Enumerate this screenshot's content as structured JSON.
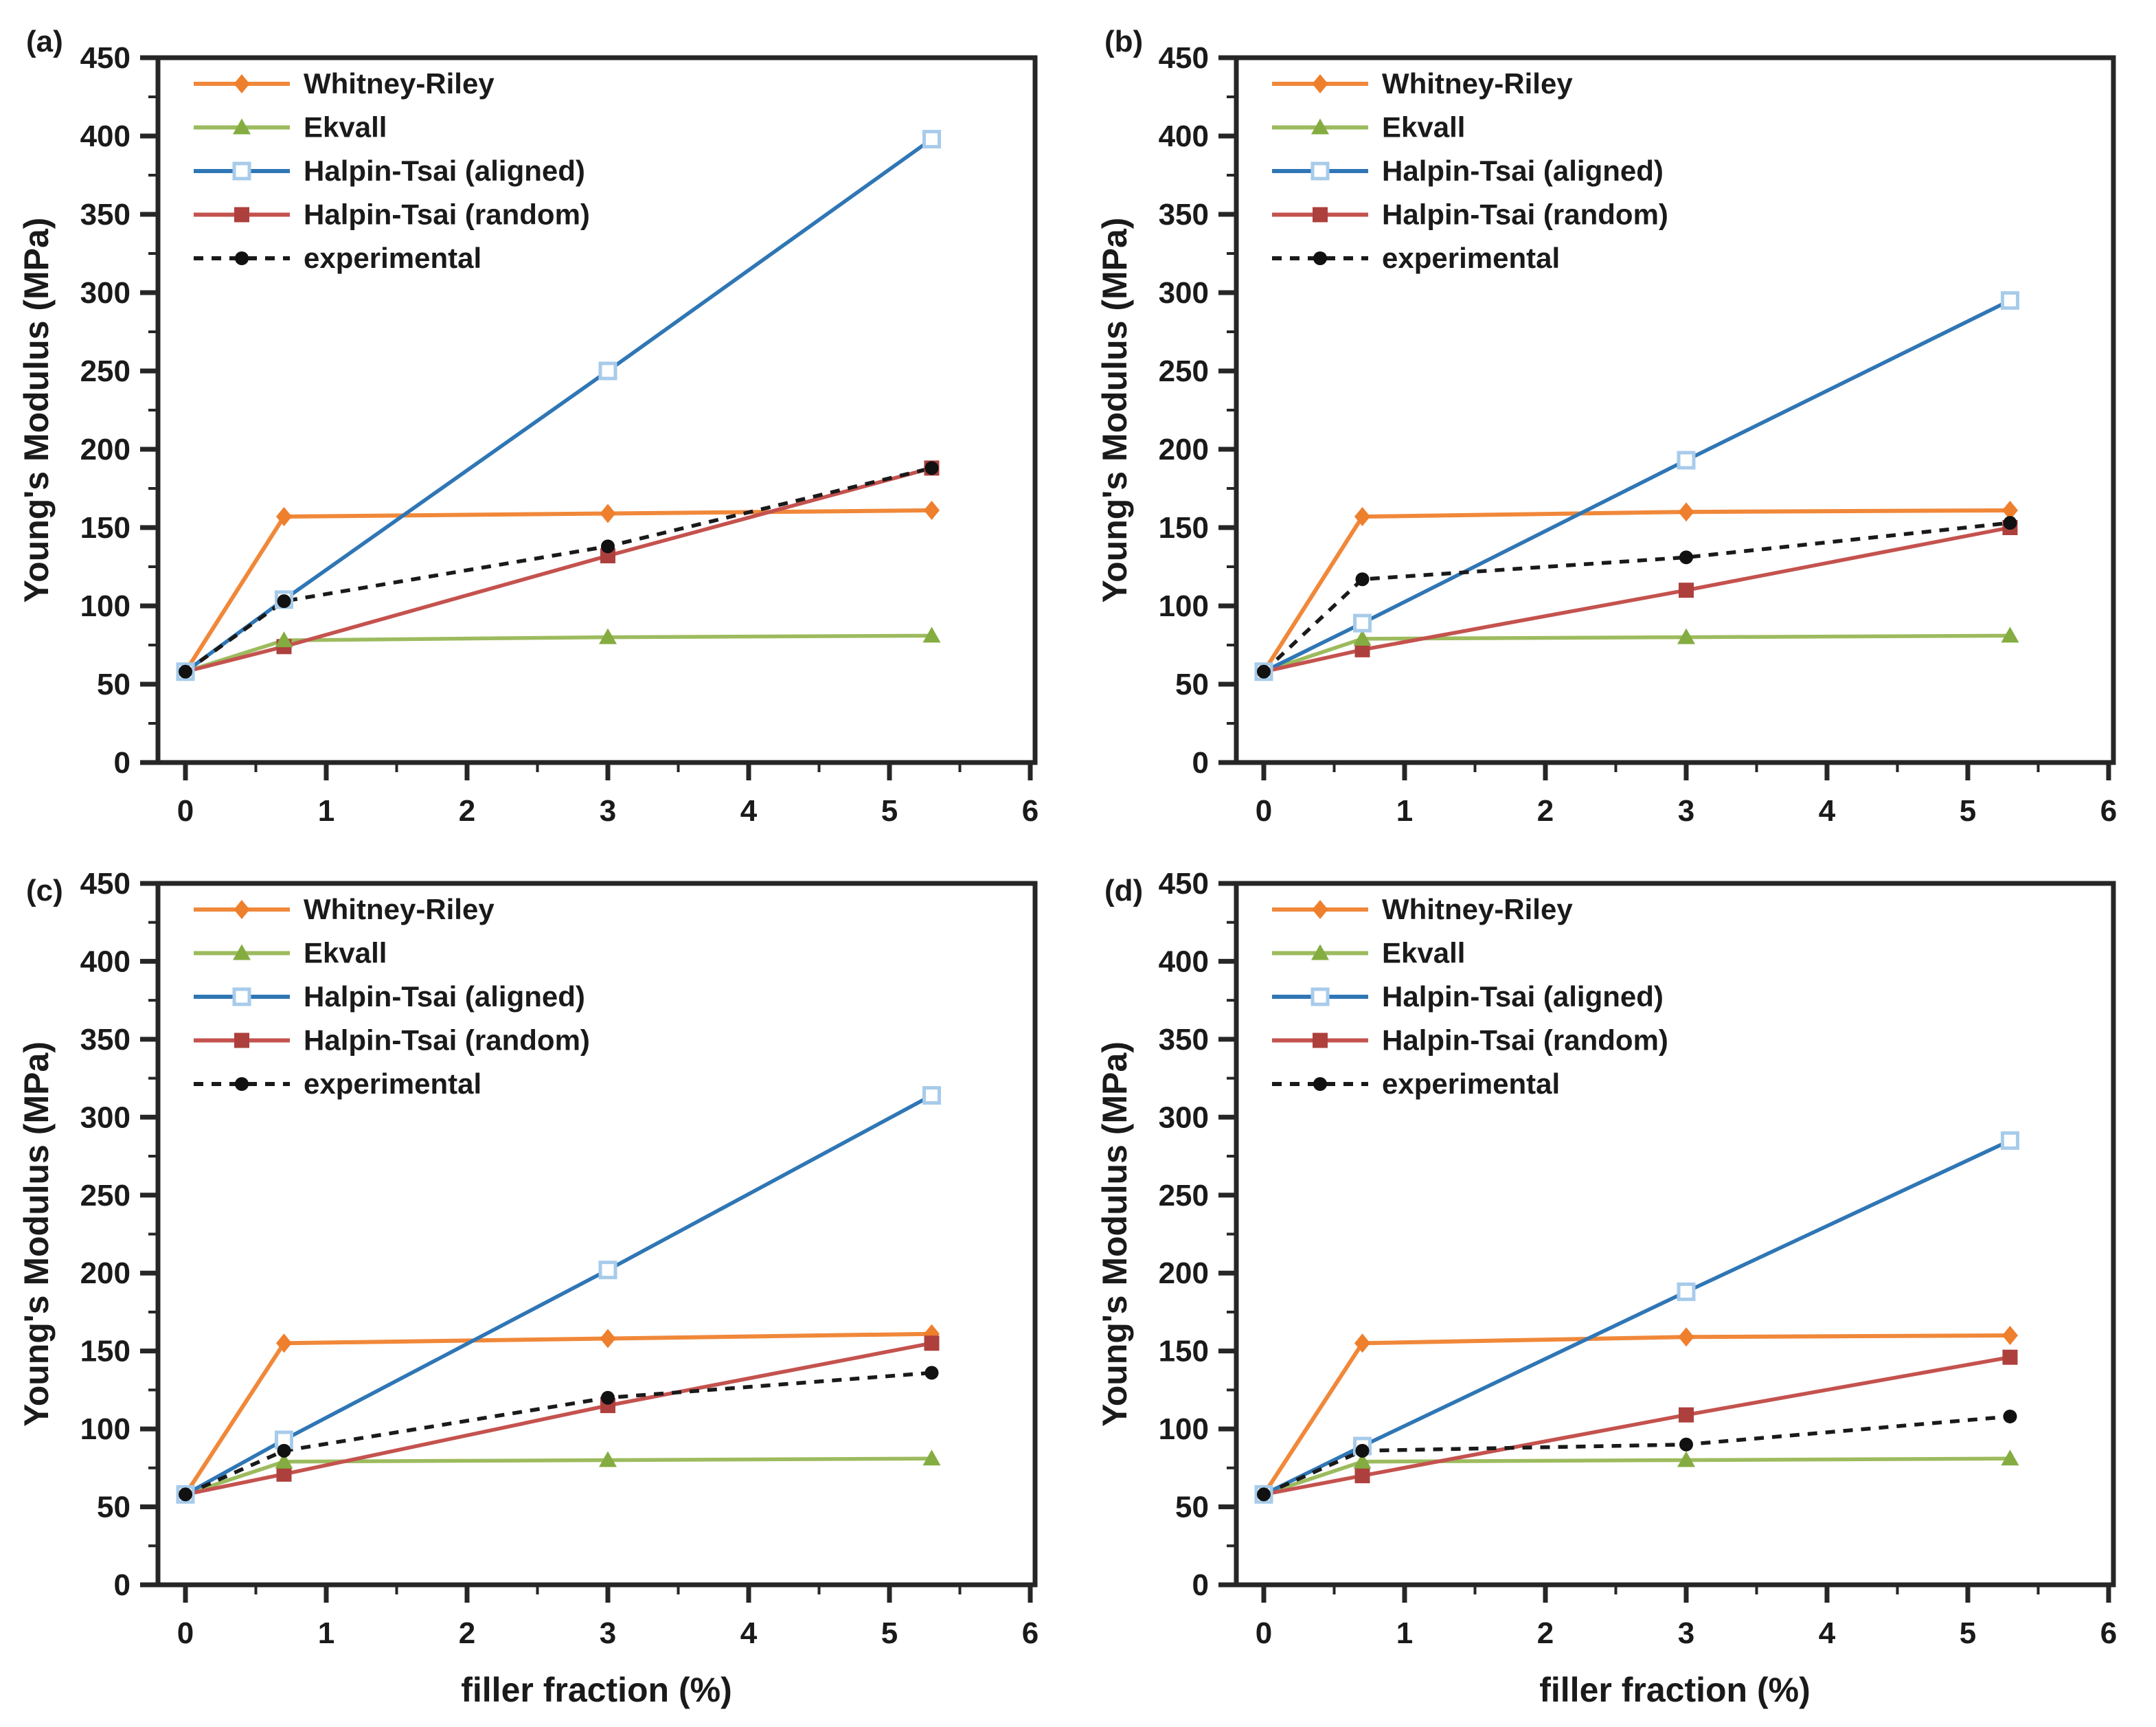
{
  "figure_title": "",
  "axes": {
    "xlabel": "filler fraction (%)",
    "ylabel": "Young's Modulus (MPa)",
    "x_ticks": [
      0,
      1,
      2,
      3,
      4,
      5,
      6
    ],
    "y_ticks": [
      0,
      50,
      100,
      150,
      200,
      250,
      300,
      350,
      400,
      450
    ],
    "x_minor_ticks": [
      0.5,
      1.5,
      2.5,
      3.5,
      4.5,
      5.5
    ],
    "y_minor_step": 25,
    "xlim": [
      -0.195,
      6.034
    ],
    "ylim": [
      0,
      450
    ],
    "grid": false,
    "axis_color": "#262626"
  },
  "legend": {
    "position": "top-left-inside",
    "entries": [
      {
        "name": "Whitney-Riley",
        "color": "#F0883A",
        "marker": "diamond",
        "marker_fill": "#EE7F2D",
        "line": "solid"
      },
      {
        "name": "Ekvall",
        "color": "#9CBB5E",
        "marker": "triangle",
        "marker_fill": "#84AC41",
        "line": "solid"
      },
      {
        "name": "Halpin-Tsai (aligned)",
        "color": "#2F76B5",
        "marker": "open-square",
        "marker_fill": "#FFFFFF",
        "marker_edge": "#A7CBEA",
        "line": "solid"
      },
      {
        "name": "Halpin-Tsai (random)",
        "color": "#C4524E",
        "marker": "square",
        "marker_fill": "#AD403D",
        "line": "solid"
      },
      {
        "name": "experimental",
        "color": "#1A1A1A",
        "marker": "circle",
        "marker_fill": "#111111",
        "line": "dashed"
      }
    ]
  },
  "chart_data": [
    {
      "type": "line",
      "panel_label": "(a)",
      "x": [
        0,
        0.7,
        3,
        5.3
      ],
      "xlabel_shown": false,
      "series": [
        {
          "name": "Whitney-Riley",
          "values": [
            58,
            157,
            159,
            161
          ]
        },
        {
          "name": "Ekvall",
          "values": [
            58,
            78,
            80,
            81
          ]
        },
        {
          "name": "Halpin-Tsai (aligned)",
          "values": [
            58,
            104,
            250,
            398
          ]
        },
        {
          "name": "Halpin-Tsai (random)",
          "values": [
            58,
            74,
            132,
            188
          ]
        },
        {
          "name": "experimental",
          "values": [
            58,
            103,
            138,
            188
          ]
        }
      ]
    },
    {
      "type": "line",
      "panel_label": "(b)",
      "x": [
        0,
        0.7,
        3,
        5.3
      ],
      "xlabel_shown": false,
      "series": [
        {
          "name": "Whitney-Riley",
          "values": [
            58,
            157,
            160,
            161
          ]
        },
        {
          "name": "Ekvall",
          "values": [
            58,
            79,
            80,
            81
          ]
        },
        {
          "name": "Halpin-Tsai (aligned)",
          "values": [
            58,
            89,
            193,
            295
          ]
        },
        {
          "name": "Halpin-Tsai (random)",
          "values": [
            58,
            72,
            110,
            150
          ]
        },
        {
          "name": "experimental",
          "values": [
            58,
            117,
            131,
            153
          ]
        }
      ]
    },
    {
      "type": "line",
      "panel_label": "(c)",
      "x": [
        0,
        0.7,
        3,
        5.3
      ],
      "xlabel_shown": true,
      "series": [
        {
          "name": "Whitney-Riley",
          "values": [
            58,
            155,
            158,
            161
          ]
        },
        {
          "name": "Ekvall",
          "values": [
            58,
            79,
            80,
            81
          ]
        },
        {
          "name": "Halpin-Tsai (aligned)",
          "values": [
            58,
            93,
            202,
            314
          ]
        },
        {
          "name": "Halpin-Tsai (random)",
          "values": [
            58,
            71,
            115,
            155
          ]
        },
        {
          "name": "experimental",
          "values": [
            58,
            86,
            120,
            136
          ]
        }
      ]
    },
    {
      "type": "line",
      "panel_label": "(d)",
      "x": [
        0,
        0.7,
        3,
        5.3
      ],
      "xlabel_shown": true,
      "series": [
        {
          "name": "Whitney-Riley",
          "values": [
            58,
            155,
            159,
            160
          ]
        },
        {
          "name": "Ekvall",
          "values": [
            58,
            79,
            80,
            81
          ]
        },
        {
          "name": "Halpin-Tsai (aligned)",
          "values": [
            58,
            89,
            188,
            285
          ]
        },
        {
          "name": "Halpin-Tsai (random)",
          "values": [
            58,
            70,
            109,
            146
          ]
        },
        {
          "name": "experimental",
          "values": [
            58,
            86,
            90,
            108
          ]
        }
      ]
    }
  ]
}
